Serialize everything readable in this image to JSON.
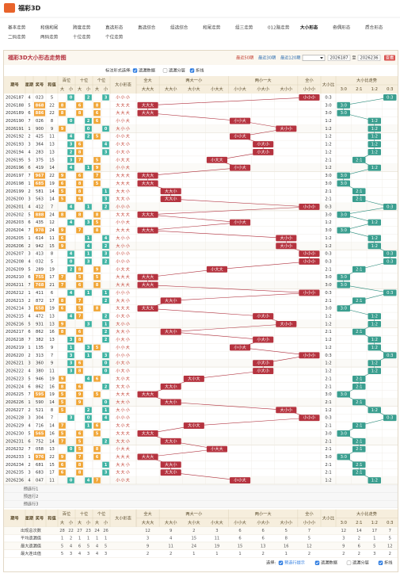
{
  "header": {
    "logo": "福彩3D"
  },
  "nav": {
    "items": [
      "基本走势",
      "和值和尾",
      "跨度走势",
      "直选形态",
      "直选综合",
      "组选综合",
      "和尾走势",
      "组三走势",
      "012路走势",
      "大小形态",
      "奇偶形态",
      "质合形态",
      "二码走势",
      "两码走势",
      "十位走势",
      "个位走势"
    ],
    "per_row": 12,
    "active": 9
  },
  "panel": {
    "title": "福彩3D大小形态走势图",
    "quick": [
      "最近50期",
      "最近30期",
      "最近120期"
    ],
    "from": "2026187",
    "to_label": "至",
    "to": "2026236",
    "button": "查看"
  },
  "options": {
    "label": "标注形式选择:",
    "items": [
      {
        "text": "遗漏数据",
        "checked": true
      },
      {
        "text": "遗漏分层",
        "checked": false
      },
      {
        "text": "折线",
        "checked": true
      }
    ]
  },
  "table": {
    "columns": {
      "issue": "期号",
      "week": "星期",
      "number": "奖号",
      "sum": "和值",
      "positions": [
        "百位",
        "十位",
        "个位"
      ],
      "sizes": [
        "大",
        "小"
      ],
      "pattern": "大小形态",
      "pattern_groups": [
        {
          "name": "全大",
          "items": [
            "大大大"
          ]
        },
        {
          "name": "两大一小",
          "items": [
            "大大小",
            "大小大",
            "小大大"
          ]
        },
        {
          "name": "两小一大",
          "items": [
            "小小大",
            "小大小",
            "大小小"
          ]
        },
        {
          "name": "全小",
          "items": [
            "小小小"
          ]
        }
      ],
      "ratio": "大小比",
      "ratio_trend": "大小比走势",
      "ratios": [
        "3:0",
        "2:1",
        "1:2",
        "0:3"
      ]
    },
    "rows": [
      {
        "issue": "2026187",
        "week": 4,
        "number": "023",
        "sum": 5,
        "digits": [
          0,
          2,
          3
        ],
        "pattern": "小小小",
        "ratio": "0:3"
      },
      {
        "issue": "2026188",
        "week": 5,
        "number": "868",
        "sum": 22,
        "digits": [
          8,
          6,
          8
        ],
        "pattern": "大大大",
        "ratio": "3:0"
      },
      {
        "issue": "2026189",
        "week": 6,
        "number": "886",
        "sum": 22,
        "digits": [
          8,
          8,
          6
        ],
        "pattern": "大大大",
        "ratio": "3:0"
      },
      {
        "issue": "2026190",
        "week": 7,
        "number": "026",
        "sum": 8,
        "digits": [
          0,
          2,
          6
        ],
        "pattern": "小小大",
        "ratio": "1:2"
      },
      {
        "issue": "2026191",
        "week": 1,
        "number": "900",
        "sum": 9,
        "digits": [
          9,
          0,
          0
        ],
        "pattern": "大小小",
        "ratio": "1:2"
      },
      {
        "issue": "2026192",
        "week": 2,
        "number": "425",
        "sum": 11,
        "digits": [
          4,
          2,
          5
        ],
        "pattern": "小小大",
        "ratio": "1:2"
      },
      {
        "issue": "2026193",
        "week": 3,
        "number": "364",
        "sum": 13,
        "digits": [
          3,
          6,
          4
        ],
        "pattern": "小大小",
        "ratio": "1:2"
      },
      {
        "issue": "2026194",
        "week": 4,
        "number": "283",
        "sum": 13,
        "digits": [
          2,
          8,
          3
        ],
        "pattern": "小大小",
        "ratio": "1:2"
      },
      {
        "issue": "2026195",
        "week": 5,
        "number": "375",
        "sum": 15,
        "digits": [
          3,
          7,
          5
        ],
        "pattern": "小大大",
        "ratio": "2:1"
      },
      {
        "issue": "2026196",
        "week": 6,
        "number": "419",
        "sum": 14,
        "digits": [
          4,
          1,
          9
        ],
        "pattern": "小小大",
        "ratio": "1:2"
      },
      {
        "issue": "2026197",
        "week": 7,
        "number": "967",
        "sum": 22,
        "digits": [
          9,
          6,
          7
        ],
        "pattern": "大大大",
        "ratio": "3:0"
      },
      {
        "issue": "2026198",
        "week": 1,
        "number": "685",
        "sum": 19,
        "digits": [
          6,
          8,
          5
        ],
        "pattern": "大大大",
        "ratio": "3:0"
      },
      {
        "issue": "2026199",
        "week": 2,
        "number": "581",
        "sum": 14,
        "digits": [
          5,
          8,
          1
        ],
        "pattern": "大大小",
        "ratio": "2:1"
      },
      {
        "issue": "2026200",
        "week": 3,
        "number": "563",
        "sum": 14,
        "digits": [
          5,
          6,
          3
        ],
        "pattern": "大大小",
        "ratio": "2:1"
      },
      {
        "issue": "2026201",
        "week": 4,
        "number": "412",
        "sum": 7,
        "digits": [
          4,
          1,
          2
        ],
        "pattern": "小小小",
        "ratio": "0:3"
      },
      {
        "issue": "2026202",
        "week": 5,
        "number": "888",
        "sum": 24,
        "digits": [
          8,
          8,
          8
        ],
        "pattern": "大大大",
        "ratio": "3:0"
      },
      {
        "issue": "2026203",
        "week": 6,
        "number": "435",
        "sum": 12,
        "digits": [
          4,
          3,
          5
        ],
        "pattern": "小小大",
        "ratio": "1:2"
      },
      {
        "issue": "2026204",
        "week": 7,
        "number": "978",
        "sum": 24,
        "digits": [
          9,
          7,
          8
        ],
        "pattern": "大大大",
        "ratio": "3:0"
      },
      {
        "issue": "2026205",
        "week": 1,
        "number": "614",
        "sum": 11,
        "digits": [
          6,
          1,
          4
        ],
        "pattern": "大小小",
        "ratio": "1:2"
      },
      {
        "issue": "2026206",
        "week": 2,
        "number": "942",
        "sum": 15,
        "digits": [
          9,
          4,
          2
        ],
        "pattern": "大小小",
        "ratio": "1:2"
      },
      {
        "issue": "2026207",
        "week": 3,
        "number": "413",
        "sum": 8,
        "digits": [
          4,
          1,
          3
        ],
        "pattern": "小小小",
        "ratio": "0:3"
      },
      {
        "issue": "2026208",
        "week": 4,
        "number": "032",
        "sum": 5,
        "digits": [
          0,
          3,
          2
        ],
        "pattern": "小小小",
        "ratio": "0:3"
      },
      {
        "issue": "2026209",
        "week": 5,
        "number": "289",
        "sum": 19,
        "digits": [
          2,
          8,
          9
        ],
        "pattern": "小大大",
        "ratio": "2:1"
      },
      {
        "issue": "2026210",
        "week": 6,
        "number": "755",
        "sum": 17,
        "digits": [
          7,
          5,
          5
        ],
        "pattern": "大大大",
        "ratio": "3:0"
      },
      {
        "issue": "2026211",
        "week": 7,
        "number": "768",
        "sum": 21,
        "digits": [
          7,
          6,
          8
        ],
        "pattern": "大大大",
        "ratio": "3:0"
      },
      {
        "issue": "2026212",
        "week": 1,
        "number": "411",
        "sum": 6,
        "digits": [
          4,
          1,
          1
        ],
        "pattern": "小小小",
        "ratio": "0:3"
      },
      {
        "issue": "2026213",
        "week": 2,
        "number": "872",
        "sum": 17,
        "digits": [
          8,
          7,
          2
        ],
        "pattern": "大大小",
        "ratio": "2:1"
      },
      {
        "issue": "2026214",
        "week": 3,
        "number": "658",
        "sum": 19,
        "digits": [
          6,
          5,
          8
        ],
        "pattern": "大大大",
        "ratio": "3:0"
      },
      {
        "issue": "2026215",
        "week": 4,
        "number": "472",
        "sum": 13,
        "digits": [
          4,
          7,
          2
        ],
        "pattern": "小大小",
        "ratio": "1:2"
      },
      {
        "issue": "2026216",
        "week": 5,
        "number": "931",
        "sum": 13,
        "digits": [
          9,
          3,
          1
        ],
        "pattern": "大小小",
        "ratio": "1:2"
      },
      {
        "issue": "2026217",
        "week": 6,
        "number": "862",
        "sum": 16,
        "digits": [
          8,
          6,
          2
        ],
        "pattern": "大大小",
        "ratio": "2:1"
      },
      {
        "issue": "2026218",
        "week": 7,
        "number": "382",
        "sum": 13,
        "digits": [
          3,
          8,
          2
        ],
        "pattern": "小大小",
        "ratio": "1:2"
      },
      {
        "issue": "2026219",
        "week": 1,
        "number": "135",
        "sum": 9,
        "digits": [
          1,
          3,
          5
        ],
        "pattern": "小小大",
        "ratio": "1:2"
      },
      {
        "issue": "2026220",
        "week": 2,
        "number": "313",
        "sum": 7,
        "digits": [
          3,
          1,
          3
        ],
        "pattern": "小小小",
        "ratio": "0:3"
      },
      {
        "issue": "2026221",
        "week": 3,
        "number": "360",
        "sum": 9,
        "digits": [
          3,
          6,
          0
        ],
        "pattern": "小大小",
        "ratio": "1:2"
      },
      {
        "issue": "2026222",
        "week": 4,
        "number": "380",
        "sum": 11,
        "digits": [
          3,
          8,
          0
        ],
        "pattern": "小大小",
        "ratio": "1:2"
      },
      {
        "issue": "2026223",
        "week": 5,
        "number": "946",
        "sum": 19,
        "digits": [
          9,
          4,
          6
        ],
        "pattern": "大小大",
        "ratio": "2:1"
      },
      {
        "issue": "2026224",
        "week": 6,
        "number": "862",
        "sum": 16,
        "digits": [
          8,
          6,
          2
        ],
        "pattern": "大大小",
        "ratio": "2:1"
      },
      {
        "issue": "2026225",
        "week": 7,
        "number": "595",
        "sum": 19,
        "digits": [
          5,
          9,
          5
        ],
        "pattern": "大大大",
        "ratio": "3:0"
      },
      {
        "issue": "2026226",
        "week": 1,
        "number": "590",
        "sum": 14,
        "digits": [
          5,
          9,
          0
        ],
        "pattern": "大大小",
        "ratio": "2:1"
      },
      {
        "issue": "2026227",
        "week": 2,
        "number": "521",
        "sum": 8,
        "digits": [
          5,
          2,
          1
        ],
        "pattern": "大小小",
        "ratio": "1:2"
      },
      {
        "issue": "2026228",
        "week": 3,
        "number": "304",
        "sum": 7,
        "digits": [
          3,
          0,
          4
        ],
        "pattern": "小小小",
        "ratio": "0:3"
      },
      {
        "issue": "2026229",
        "week": 4,
        "number": "716",
        "sum": 14,
        "digits": [
          7,
          1,
          6
        ],
        "pattern": "大小大",
        "ratio": "2:1"
      },
      {
        "issue": "2026230",
        "week": 5,
        "number": "565",
        "sum": 16,
        "digits": [
          5,
          6,
          5
        ],
        "pattern": "大大大",
        "ratio": "3:0"
      },
      {
        "issue": "2026231",
        "week": 6,
        "number": "752",
        "sum": 14,
        "digits": [
          7,
          5,
          2
        ],
        "pattern": "大大小",
        "ratio": "2:1"
      },
      {
        "issue": "2026232",
        "week": 7,
        "number": "058",
        "sum": 13,
        "digits": [
          0,
          5,
          8
        ],
        "pattern": "小大大",
        "ratio": "2:1"
      },
      {
        "issue": "2026233",
        "week": 1,
        "number": "976",
        "sum": 22,
        "digits": [
          9,
          7,
          6
        ],
        "pattern": "大大大",
        "ratio": "3:0"
      },
      {
        "issue": "2026234",
        "week": 2,
        "number": "681",
        "sum": 15,
        "digits": [
          6,
          8,
          1
        ],
        "pattern": "大大小",
        "ratio": "2:1"
      },
      {
        "issue": "2026235",
        "week": 3,
        "number": "683",
        "sum": 17,
        "digits": [
          6,
          8,
          3
        ],
        "pattern": "大大小",
        "ratio": "2:1"
      },
      {
        "issue": "2026236",
        "week": 4,
        "number": "047",
        "sum": 11,
        "digits": [
          0,
          4,
          7
        ],
        "pattern": "小小大",
        "ratio": "1:2"
      }
    ],
    "pred_rows": [
      "预选行1",
      "预选行2",
      "预选行3"
    ],
    "stats": {
      "labels": [
        "出现总次数",
        "平均遗漏值",
        "最大遗漏值",
        "最大连出值"
      ],
      "values": [
        [
          28,
          22,
          27,
          23,
          24,
          26,
          12,
          9,
          2,
          3,
          6,
          6,
          5,
          7,
          12,
          14,
          17,
          7
        ],
        [
          1,
          2,
          1,
          1,
          1,
          1,
          3,
          4,
          15,
          11,
          6,
          6,
          8,
          5,
          3,
          2,
          1,
          5
        ],
        [
          5,
          4,
          6,
          5,
          4,
          5,
          9,
          11,
          24,
          19,
          15,
          13,
          16,
          12,
          9,
          6,
          5,
          12
        ],
        [
          5,
          3,
          4,
          3,
          4,
          3,
          2,
          2,
          1,
          1,
          1,
          2,
          1,
          2,
          2,
          2,
          3,
          2
        ]
      ]
    }
  },
  "footer_options": {
    "label": "选择:",
    "items": [
      {
        "text": "预选行提示",
        "checked": true
      },
      {
        "text": "遗漏数据",
        "checked": true
      },
      {
        "text": "遗漏分层",
        "checked": false
      },
      {
        "text": "折线",
        "checked": true
      }
    ]
  }
}
